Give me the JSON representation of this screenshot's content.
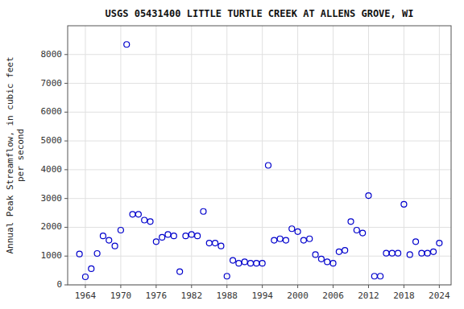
{
  "chart_data": {
    "type": "scatter",
    "title": "USGS 05431400 LITTLE TURTLE CREEK AT ALLENS GROVE, WI",
    "y_label": "Annual Peak Streamflow, in cubic feet\nper second",
    "x": [
      1963,
      1964,
      1965,
      1966,
      1967,
      1968,
      1969,
      1970,
      1971,
      1972,
      1973,
      1974,
      1975,
      1976,
      1977,
      1978,
      1979,
      1980,
      1981,
      1982,
      1983,
      1984,
      1985,
      1986,
      1987,
      1988,
      1989,
      1990,
      1991,
      1992,
      1993,
      1994,
      1995,
      1996,
      1997,
      1998,
      1999,
      2000,
      2001,
      2002,
      2003,
      2004,
      2005,
      2006,
      2007,
      2008,
      2009,
      2010,
      2011,
      2012,
      2013,
      2014,
      2015,
      2016,
      2017,
      2018,
      2019,
      2020,
      2021,
      2022,
      2023,
      2024
    ],
    "values": [
      1070,
      280,
      560,
      1090,
      1700,
      1550,
      1350,
      1900,
      8350,
      2450,
      2450,
      2250,
      2200,
      1500,
      1650,
      1750,
      1700,
      460,
      1700,
      1750,
      1700,
      2550,
      1450,
      1450,
      1350,
      300,
      850,
      750,
      800,
      750,
      750,
      750,
      4150,
      1550,
      1600,
      1550,
      1950,
      1850,
      1550,
      1600,
      1050,
      900,
      800,
      750,
      1150,
      1200,
      2200,
      1900,
      1800,
      3100,
      300,
      300,
      1100,
      1100,
      1100,
      2800,
      1050,
      1500,
      1100,
      1100,
      1150,
      1450
    ],
    "xlim": [
      1961,
      2026
    ],
    "ylim": [
      0,
      9000
    ],
    "xticks": [
      1964,
      1970,
      1976,
      1982,
      1988,
      1994,
      2000,
      2006,
      2012,
      2018,
      2024
    ],
    "yticks": [
      0,
      1000,
      2000,
      3000,
      4000,
      5000,
      6000,
      7000,
      8000
    ],
    "color": "#0000cc",
    "marker": "circle",
    "grid": true
  }
}
